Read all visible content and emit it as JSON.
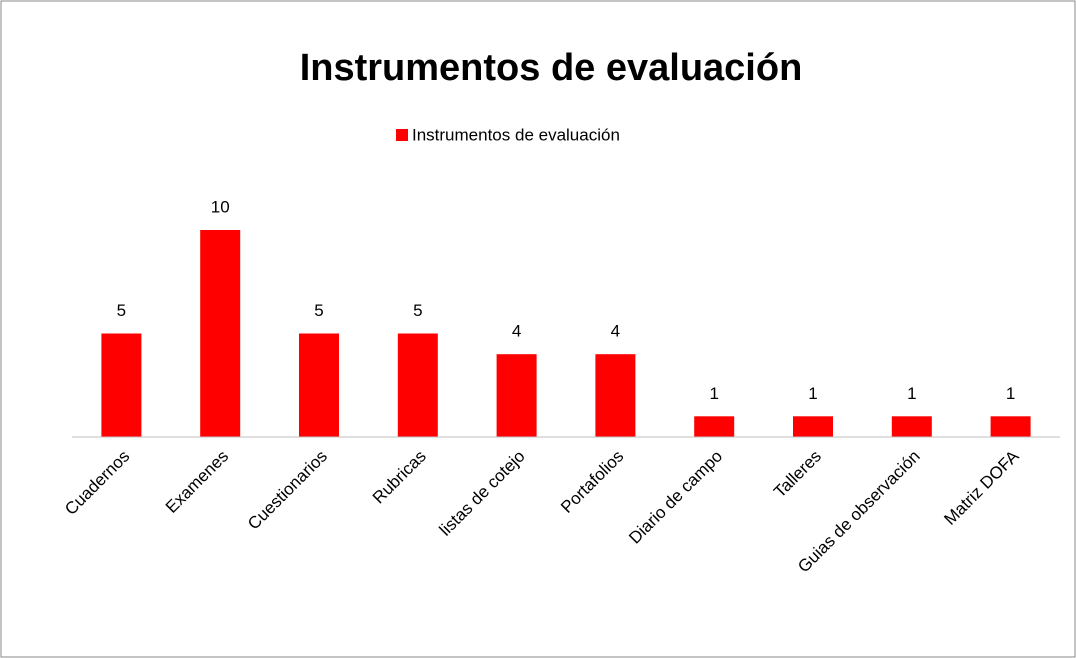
{
  "chart_data": {
    "type": "bar",
    "title": "Instrumentos de evaluación",
    "categories": [
      "Cuadernos",
      "Examenes",
      "Cuestionarios",
      "Rubricas",
      "listas de cotejo",
      "Portafolios",
      "Diario de campo",
      "Talleres",
      "Guias de observación",
      "Matriz DOFA"
    ],
    "series": [
      {
        "name": "Instrumentos de evaluación",
        "color": "#ff0000",
        "values": [
          5,
          10,
          5,
          5,
          4,
          4,
          1,
          1,
          1,
          1
        ]
      }
    ],
    "legend": "top"
  }
}
